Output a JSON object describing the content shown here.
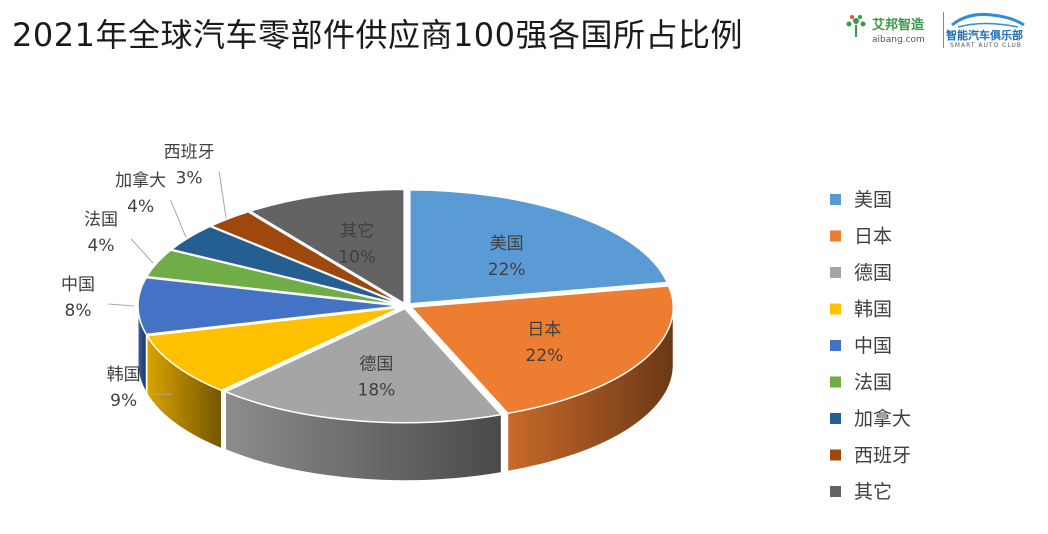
{
  "title": "2021年全球汽车零部件供应商100强各国所占比例",
  "logo": {
    "brand_cn": "艾邦智造",
    "brand_url": "aibang.com",
    "club_cn": "智能汽车俱乐部",
    "club_en": "SMART AUTO CLUB"
  },
  "chart_data": {
    "type": "pie",
    "title": "2021年全球汽车零部件供应商100强各国所占比例",
    "categories": [
      "美国",
      "日本",
      "德国",
      "韩国",
      "中国",
      "法国",
      "加拿大",
      "西班牙",
      "其它"
    ],
    "values": [
      22,
      22,
      18,
      9,
      8,
      4,
      4,
      3,
      10
    ],
    "value_labels": [
      "22%",
      "22%",
      "18%",
      "9%",
      "8%",
      "4%",
      "4%",
      "3%",
      "10%"
    ],
    "colors": [
      "#5B9BD5",
      "#ED7D31",
      "#A5A5A5",
      "#FFC000",
      "#4472C4",
      "#70AD47",
      "#255E91",
      "#9E480E",
      "#636363"
    ],
    "style": "3d-exploded",
    "legend_position": "right"
  }
}
